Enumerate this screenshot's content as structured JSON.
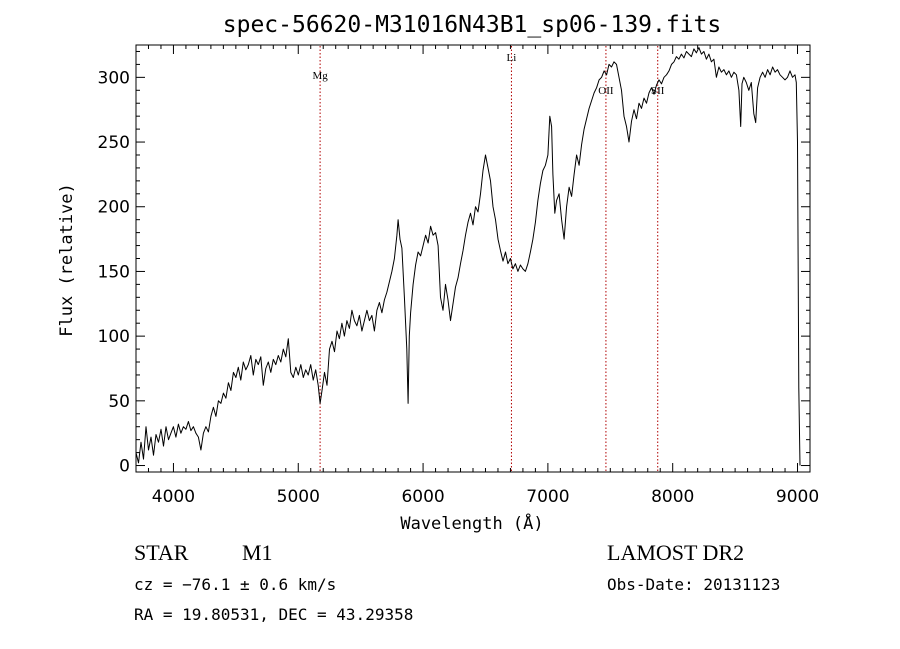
{
  "chart_data": {
    "type": "line",
    "title": "spec-56620-M31016N43B1_sp06-139.fits",
    "xlabel": "Wavelength (Å)",
    "ylabel": "Flux (relative)",
    "xlim": [
      3700,
      9100
    ],
    "ylim": [
      -5,
      325
    ],
    "x_ticks": [
      4000,
      5000,
      6000,
      7000,
      8000,
      9000
    ],
    "y_ticks": [
      0,
      50,
      100,
      150,
      200,
      250,
      300
    ],
    "grid": false,
    "series": [
      {
        "color": "#000000",
        "points": [
          [
            3700,
            10
          ],
          [
            3720,
            2
          ],
          [
            3740,
            18
          ],
          [
            3760,
            5
          ],
          [
            3780,
            30
          ],
          [
            3800,
            12
          ],
          [
            3820,
            22
          ],
          [
            3840,
            8
          ],
          [
            3860,
            24
          ],
          [
            3880,
            18
          ],
          [
            3900,
            28
          ],
          [
            3920,
            15
          ],
          [
            3940,
            30
          ],
          [
            3960,
            20
          ],
          [
            3980,
            25
          ],
          [
            4000,
            30
          ],
          [
            4020,
            22
          ],
          [
            4040,
            32
          ],
          [
            4060,
            25
          ],
          [
            4080,
            30
          ],
          [
            4100,
            28
          ],
          [
            4120,
            34
          ],
          [
            4140,
            27
          ],
          [
            4160,
            30
          ],
          [
            4180,
            25
          ],
          [
            4200,
            22
          ],
          [
            4220,
            12
          ],
          [
            4240,
            25
          ],
          [
            4260,
            30
          ],
          [
            4280,
            26
          ],
          [
            4300,
            38
          ],
          [
            4320,
            45
          ],
          [
            4340,
            38
          ],
          [
            4360,
            50
          ],
          [
            4380,
            48
          ],
          [
            4400,
            56
          ],
          [
            4420,
            52
          ],
          [
            4440,
            64
          ],
          [
            4460,
            58
          ],
          [
            4480,
            72
          ],
          [
            4500,
            68
          ],
          [
            4520,
            76
          ],
          [
            4540,
            66
          ],
          [
            4560,
            80
          ],
          [
            4580,
            74
          ],
          [
            4600,
            78
          ],
          [
            4620,
            85
          ],
          [
            4640,
            70
          ],
          [
            4660,
            82
          ],
          [
            4680,
            78
          ],
          [
            4700,
            84
          ],
          [
            4720,
            62
          ],
          [
            4740,
            75
          ],
          [
            4760,
            80
          ],
          [
            4780,
            72
          ],
          [
            4800,
            82
          ],
          [
            4820,
            78
          ],
          [
            4840,
            85
          ],
          [
            4860,
            80
          ],
          [
            4880,
            90
          ],
          [
            4900,
            84
          ],
          [
            4920,
            98
          ],
          [
            4940,
            72
          ],
          [
            4960,
            68
          ],
          [
            4980,
            76
          ],
          [
            5000,
            70
          ],
          [
            5020,
            78
          ],
          [
            5040,
            68
          ],
          [
            5060,
            74
          ],
          [
            5080,
            70
          ],
          [
            5100,
            78
          ],
          [
            5120,
            66
          ],
          [
            5140,
            74
          ],
          [
            5160,
            62
          ],
          [
            5175,
            48
          ],
          [
            5190,
            58
          ],
          [
            5210,
            72
          ],
          [
            5230,
            62
          ],
          [
            5250,
            90
          ],
          [
            5270,
            96
          ],
          [
            5290,
            88
          ],
          [
            5310,
            104
          ],
          [
            5330,
            98
          ],
          [
            5350,
            110
          ],
          [
            5370,
            100
          ],
          [
            5390,
            112
          ],
          [
            5410,
            106
          ],
          [
            5430,
            120
          ],
          [
            5450,
            112
          ],
          [
            5470,
            108
          ],
          [
            5490,
            116
          ],
          [
            5510,
            104
          ],
          [
            5530,
            112
          ],
          [
            5550,
            120
          ],
          [
            5570,
            112
          ],
          [
            5590,
            116
          ],
          [
            5610,
            104
          ],
          [
            5630,
            120
          ],
          [
            5650,
            126
          ],
          [
            5670,
            118
          ],
          [
            5690,
            128
          ],
          [
            5710,
            134
          ],
          [
            5730,
            142
          ],
          [
            5750,
            150
          ],
          [
            5770,
            160
          ],
          [
            5790,
            178
          ],
          [
            5800,
            190
          ],
          [
            5815,
            175
          ],
          [
            5830,
            168
          ],
          [
            5850,
            130
          ],
          [
            5870,
            90
          ],
          [
            5880,
            48
          ],
          [
            5890,
            100
          ],
          [
            5900,
            118
          ],
          [
            5920,
            140
          ],
          [
            5940,
            155
          ],
          [
            5960,
            165
          ],
          [
            5980,
            162
          ],
          [
            6000,
            170
          ],
          [
            6020,
            178
          ],
          [
            6040,
            172
          ],
          [
            6060,
            185
          ],
          [
            6080,
            178
          ],
          [
            6100,
            180
          ],
          [
            6120,
            170
          ],
          [
            6140,
            130
          ],
          [
            6160,
            120
          ],
          [
            6180,
            140
          ],
          [
            6200,
            128
          ],
          [
            6220,
            112
          ],
          [
            6240,
            125
          ],
          [
            6260,
            138
          ],
          [
            6280,
            145
          ],
          [
            6300,
            156
          ],
          [
            6320,
            166
          ],
          [
            6340,
            178
          ],
          [
            6360,
            188
          ],
          [
            6380,
            195
          ],
          [
            6400,
            186
          ],
          [
            6420,
            200
          ],
          [
            6440,
            196
          ],
          [
            6460,
            210
          ],
          [
            6480,
            228
          ],
          [
            6500,
            240
          ],
          [
            6520,
            230
          ],
          [
            6540,
            220
          ],
          [
            6560,
            200
          ],
          [
            6580,
            190
          ],
          [
            6600,
            175
          ],
          [
            6620,
            166
          ],
          [
            6640,
            158
          ],
          [
            6660,
            165
          ],
          [
            6680,
            156
          ],
          [
            6700,
            160
          ],
          [
            6720,
            152
          ],
          [
            6740,
            156
          ],
          [
            6760,
            150
          ],
          [
            6780,
            155
          ],
          [
            6800,
            152
          ],
          [
            6820,
            150
          ],
          [
            6840,
            156
          ],
          [
            6860,
            165
          ],
          [
            6880,
            175
          ],
          [
            6900,
            188
          ],
          [
            6920,
            205
          ],
          [
            6940,
            218
          ],
          [
            6960,
            228
          ],
          [
            6980,
            232
          ],
          [
            7000,
            240
          ],
          [
            7015,
            270
          ],
          [
            7030,
            262
          ],
          [
            7040,
            225
          ],
          [
            7055,
            195
          ],
          [
            7070,
            205
          ],
          [
            7090,
            210
          ],
          [
            7110,
            190
          ],
          [
            7130,
            175
          ],
          [
            7150,
            200
          ],
          [
            7170,
            215
          ],
          [
            7190,
            208
          ],
          [
            7210,
            225
          ],
          [
            7230,
            240
          ],
          [
            7250,
            232
          ],
          [
            7270,
            248
          ],
          [
            7290,
            260
          ],
          [
            7310,
            268
          ],
          [
            7330,
            276
          ],
          [
            7350,
            282
          ],
          [
            7370,
            288
          ],
          [
            7390,
            292
          ],
          [
            7410,
            298
          ],
          [
            7430,
            300
          ],
          [
            7450,
            305
          ],
          [
            7470,
            302
          ],
          [
            7490,
            310
          ],
          [
            7510,
            308
          ],
          [
            7530,
            312
          ],
          [
            7550,
            310
          ],
          [
            7570,
            300
          ],
          [
            7590,
            290
          ],
          [
            7610,
            270
          ],
          [
            7630,
            262
          ],
          [
            7650,
            250
          ],
          [
            7670,
            266
          ],
          [
            7690,
            275
          ],
          [
            7710,
            268
          ],
          [
            7730,
            280
          ],
          [
            7750,
            276
          ],
          [
            7770,
            284
          ],
          [
            7790,
            280
          ],
          [
            7810,
            288
          ],
          [
            7830,
            292
          ],
          [
            7850,
            287
          ],
          [
            7870,
            294
          ],
          [
            7890,
            298
          ],
          [
            7910,
            295
          ],
          [
            7930,
            300
          ],
          [
            7950,
            302
          ],
          [
            7970,
            305
          ],
          [
            7990,
            310
          ],
          [
            8010,
            312
          ],
          [
            8030,
            316
          ],
          [
            8050,
            314
          ],
          [
            8070,
            318
          ],
          [
            8090,
            315
          ],
          [
            8110,
            320
          ],
          [
            8130,
            318
          ],
          [
            8150,
            316
          ],
          [
            8170,
            322
          ],
          [
            8190,
            319
          ],
          [
            8210,
            323
          ],
          [
            8230,
            318
          ],
          [
            8250,
            320
          ],
          [
            8270,
            314
          ],
          [
            8290,
            318
          ],
          [
            8310,
            312
          ],
          [
            8330,
            314
          ],
          [
            8350,
            300
          ],
          [
            8370,
            308
          ],
          [
            8390,
            304
          ],
          [
            8410,
            306
          ],
          [
            8430,
            302
          ],
          [
            8450,
            305
          ],
          [
            8470,
            300
          ],
          [
            8490,
            304
          ],
          [
            8510,
            302
          ],
          [
            8530,
            290
          ],
          [
            8545,
            262
          ],
          [
            8555,
            295
          ],
          [
            8570,
            300
          ],
          [
            8590,
            296
          ],
          [
            8610,
            290
          ],
          [
            8630,
            296
          ],
          [
            8650,
            272
          ],
          [
            8665,
            265
          ],
          [
            8680,
            292
          ],
          [
            8700,
            300
          ],
          [
            8720,
            304
          ],
          [
            8740,
            300
          ],
          [
            8760,
            306
          ],
          [
            8780,
            302
          ],
          [
            8800,
            308
          ],
          [
            8820,
            304
          ],
          [
            8840,
            306
          ],
          [
            8860,
            302
          ],
          [
            8880,
            300
          ],
          [
            8900,
            298
          ],
          [
            8920,
            300
          ],
          [
            8940,
            305
          ],
          [
            8960,
            300
          ],
          [
            8980,
            302
          ],
          [
            8990,
            296
          ],
          [
            9000,
            250
          ],
          [
            9010,
            60
          ],
          [
            9020,
            0
          ]
        ]
      }
    ],
    "line_markers": [
      {
        "label": "Mg",
        "x": 5175
      },
      {
        "label": "Li",
        "x": 6708
      },
      {
        "label": "OII",
        "x": 7465
      },
      {
        "label": "SII",
        "x": 7880
      }
    ],
    "marker_color": "#b00000"
  },
  "footer": {
    "object_class": "STAR",
    "subclass": "M1",
    "survey": "LAMOST DR2",
    "velocity": "cz = −76.1 ± 0.6 km/s",
    "obs_date": "Obs-Date: 20131123",
    "coordinates": "RA =  19.80531, DEC =  43.29358"
  }
}
